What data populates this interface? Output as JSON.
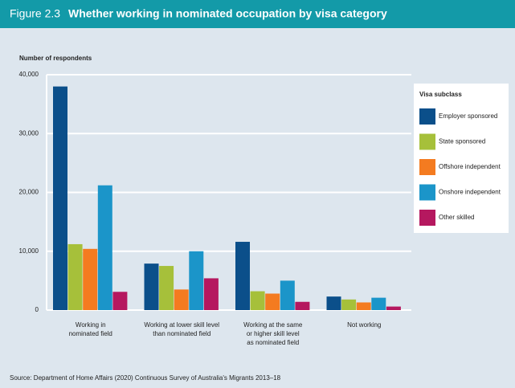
{
  "chart_data": {
    "type": "bar",
    "figure_label": "Figure 2.3",
    "title": "Whether working in nominated occupation by visa category",
    "y_label": "Number of respondents",
    "source": "Source: Department of Home Affairs (2020) Continuous Survey of Australia's Migrants 2013–18",
    "legend_title": "Visa subclass",
    "categories": [
      "Working in\nnominated field",
      "Working at lower skill level\nthan nominated field",
      "Working at the same\nor higher skill level\nas nominated field",
      "Not working"
    ],
    "series": [
      {
        "name": "Employer sponsored",
        "color": "#0b4f8a",
        "values": [
          38000,
          7900,
          11600,
          2300
        ]
      },
      {
        "name": "State sponsored",
        "color": "#a6c03a",
        "values": [
          11200,
          7500,
          3200,
          1800
        ]
      },
      {
        "name": "Offshore independent",
        "color": "#f47b20",
        "values": [
          10400,
          3500,
          2800,
          1300
        ]
      },
      {
        "name": "Onshore independent",
        "color": "#1b95c9",
        "values": [
          21200,
          10000,
          5000,
          2100
        ]
      },
      {
        "name": "Other skilled",
        "color": "#b5185f",
        "values": [
          3100,
          5400,
          1400,
          600
        ]
      }
    ],
    "ylim": [
      0,
      40000
    ],
    "yticks": [
      0,
      {
        "value": 10000,
        "label": "10,000"
      },
      {
        "value": 20000,
        "label": "20,000"
      },
      {
        "value": 30000,
        "label": "30,000"
      },
      {
        "value": 40000,
        "label": "40,000"
      }
    ],
    "grid": true
  }
}
